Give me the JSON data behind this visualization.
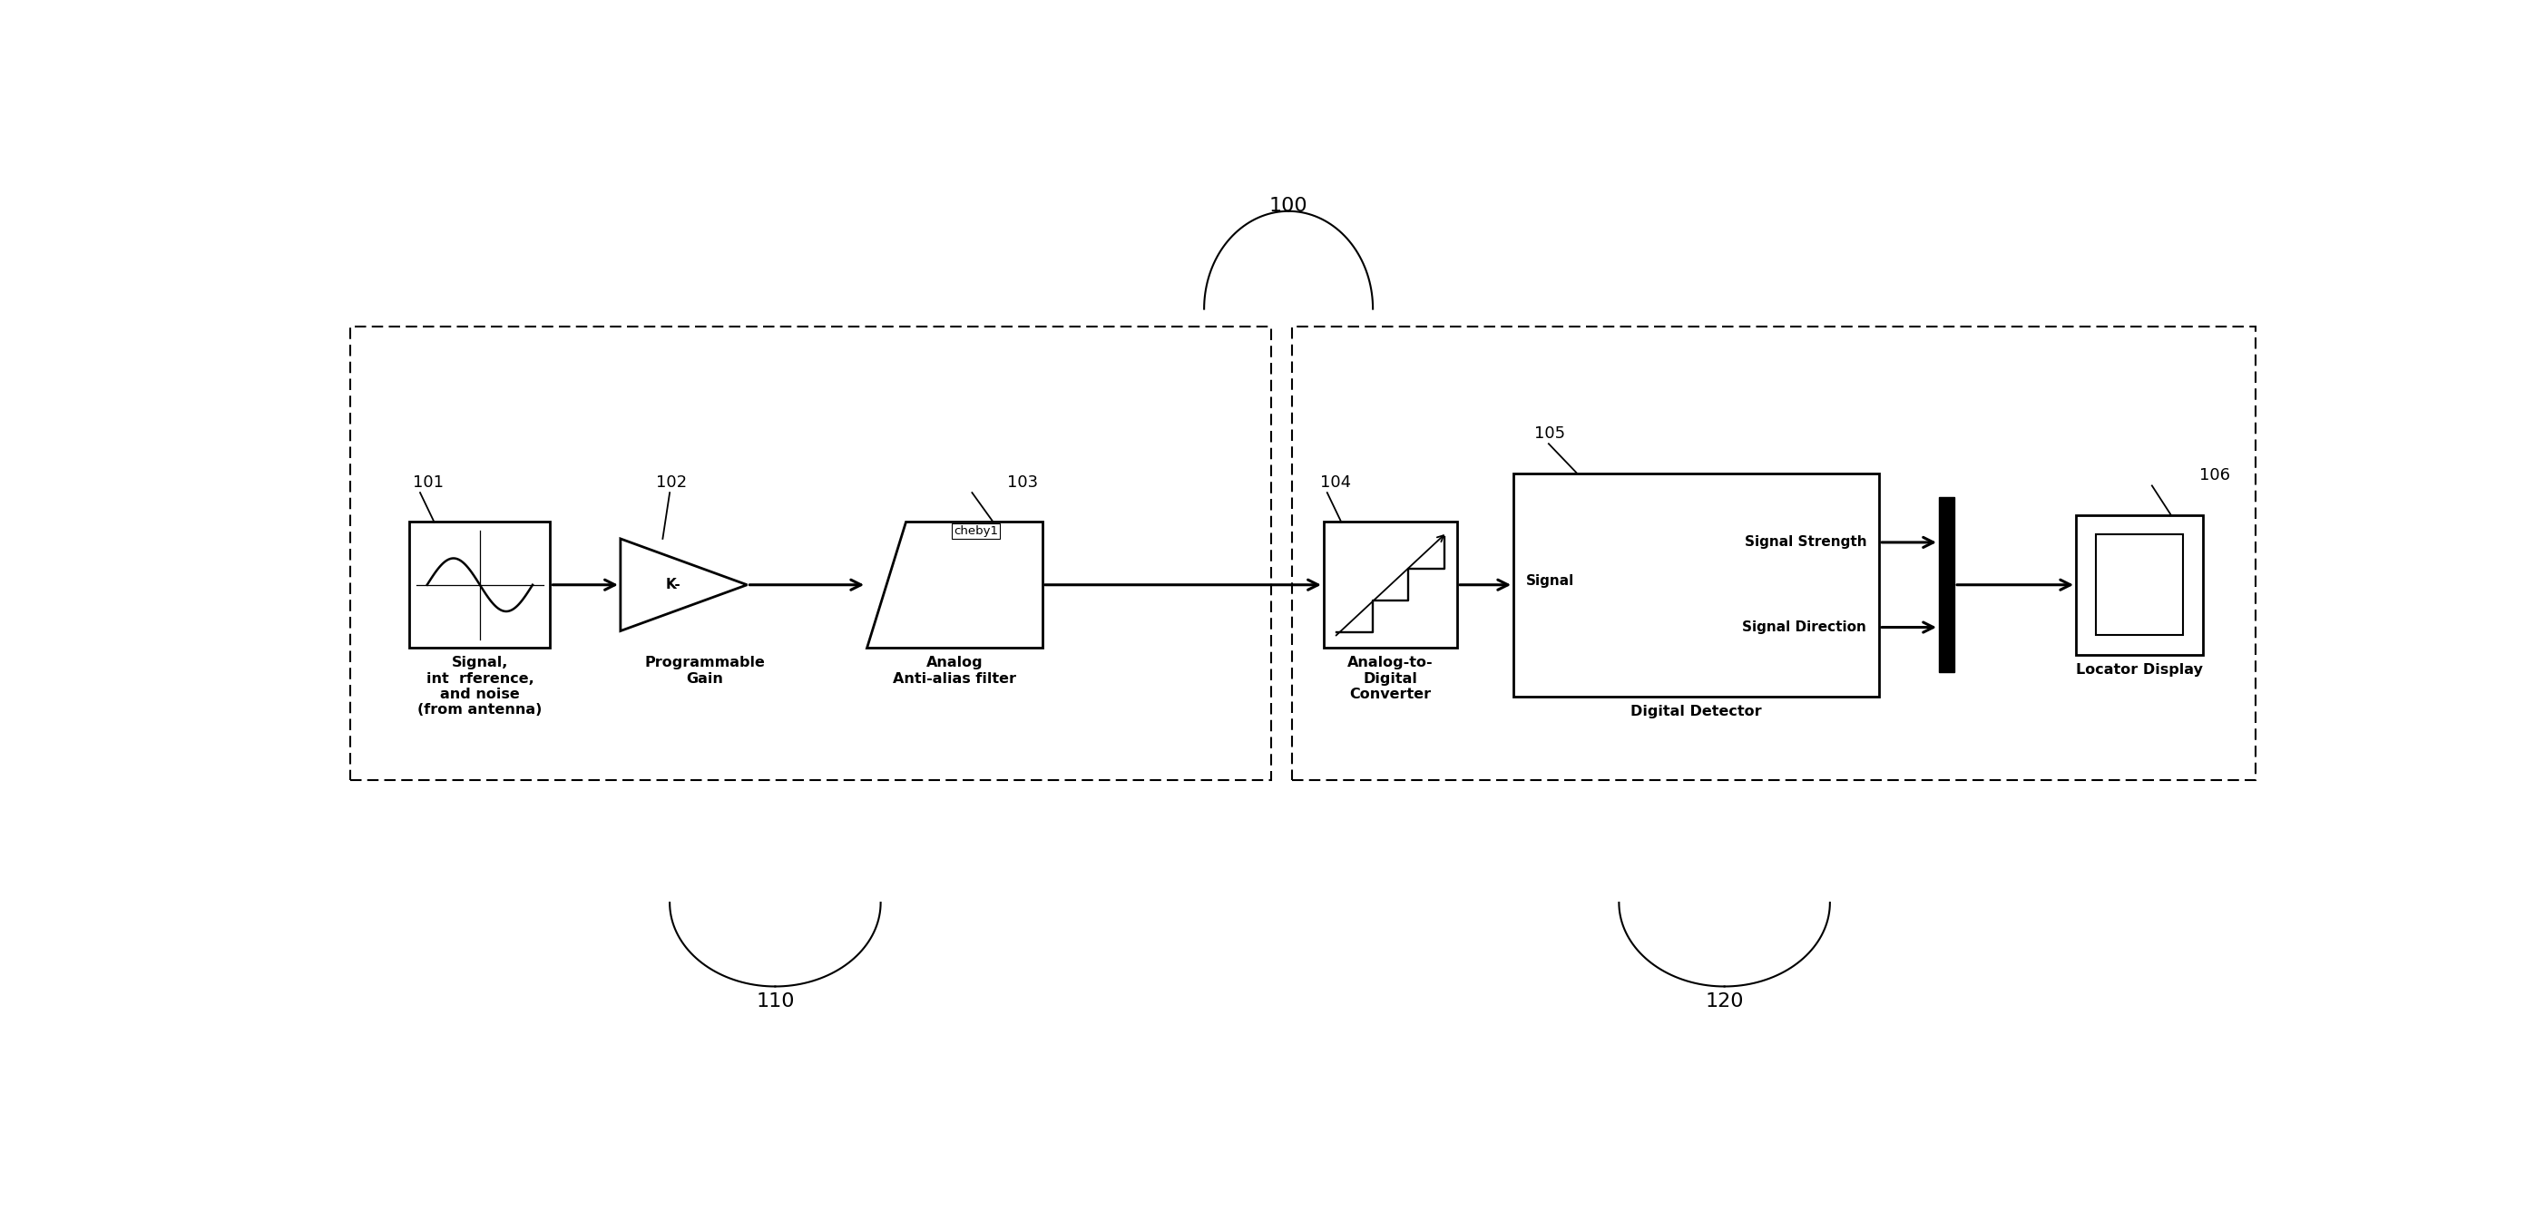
{
  "fig_width": 28.05,
  "fig_height": 13.56,
  "bg_color": "#ffffff",
  "label_100": "100",
  "label_110": "110",
  "label_120": "120",
  "label_101": "101",
  "label_102": "102",
  "label_103": "103",
  "label_104": "104",
  "label_105": "105",
  "label_106": "106",
  "text_101": "Signal,\nint  rference,\nand noise\n(from antenna)",
  "text_102": "Programmable\nGain",
  "text_103": "Analog\nAnti-alias filter",
  "text_104": "Analog-to-\nDigital\nConverter",
  "text_105_label": "Digital Detector",
  "text_105_input": "Signal",
  "text_105_out1": "Signal Strength",
  "text_105_out2": "Signal Direction",
  "text_106": "Locator Display",
  "text_103_top": "cheby1"
}
